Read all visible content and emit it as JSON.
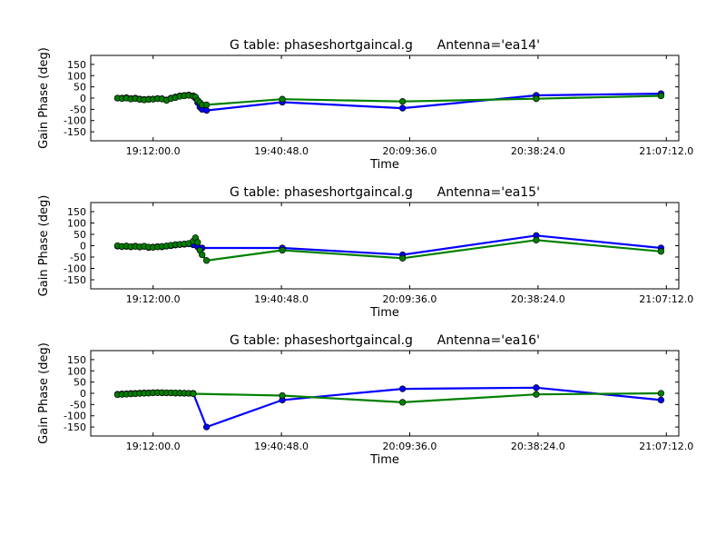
{
  "chart_data": [
    {
      "type": "line",
      "title": "G table: phaseshortgaincal.g      Antenna='ea14'",
      "xlabel": "Time",
      "ylabel": "Gain Phase (deg)",
      "xlim": [
        "18:58:00",
        "21:10:00"
      ],
      "ylim": [
        -190,
        190
      ],
      "xticks": [
        "19:12:00.0",
        "19:40:48.0",
        "20:09:36.0",
        "20:38:24.0",
        "21:07:12.0"
      ],
      "yticks": [
        "150",
        "100",
        "50",
        "0",
        "-50",
        "-100",
        "-150"
      ],
      "yticks_values": [
        150,
        100,
        50,
        0,
        -50,
        -100,
        -150
      ],
      "series": [
        {
          "color": "#0000ff",
          "x": [
            "19:04:00",
            "19:05:00",
            "19:06:00",
            "19:07:00",
            "19:08:00",
            "19:09:00",
            "19:10:00",
            "19:11:00",
            "19:12:00",
            "19:13:00",
            "19:14:00",
            "19:15:00",
            "19:16:00",
            "19:17:00",
            "19:18:00",
            "19:19:00",
            "19:20:00",
            "19:21:00",
            "19:21:30",
            "19:22:00",
            "19:22:30",
            "19:23:00",
            "19:24:00",
            "19:41:00",
            "20:08:00",
            "20:38:00",
            "21:06:00"
          ],
          "y": [
            0,
            0,
            2,
            -2,
            0,
            -4,
            -6,
            -5,
            -4,
            -2,
            -3,
            -8,
            0,
            5,
            10,
            12,
            14,
            10,
            0,
            -20,
            -40,
            -50,
            -55,
            -18,
            -45,
            12,
            20
          ]
        },
        {
          "color": "#008000",
          "x": [
            "19:04:00",
            "19:05:00",
            "19:06:00",
            "19:07:00",
            "19:08:00",
            "19:09:00",
            "19:10:00",
            "19:11:00",
            "19:12:00",
            "19:13:00",
            "19:14:00",
            "19:15:00",
            "19:16:00",
            "19:17:00",
            "19:18:00",
            "19:19:00",
            "19:20:00",
            "19:21:00",
            "19:21:30",
            "19:22:00",
            "19:22:30",
            "19:23:00",
            "19:24:00",
            "19:41:00",
            "20:08:00",
            "20:38:00",
            "21:06:00"
          ],
          "y": [
            0,
            -2,
            0,
            -4,
            -2,
            -6,
            -8,
            -6,
            -5,
            -3,
            -4,
            -10,
            -2,
            2,
            8,
            10,
            12,
            8,
            5,
            -10,
            -20,
            -30,
            -30,
            -5,
            -15,
            -3,
            10
          ]
        }
      ]
    },
    {
      "type": "line",
      "title": "G table: phaseshortgaincal.g      Antenna='ea15'",
      "xlabel": "Time",
      "ylabel": "Gain Phase (deg)",
      "xlim": [
        "18:58:00",
        "21:10:00"
      ],
      "ylim": [
        -190,
        190
      ],
      "xticks": [
        "19:12:00.0",
        "19:40:48.0",
        "20:09:36.0",
        "20:38:24.0",
        "21:07:12.0"
      ],
      "yticks": [
        "150",
        "100",
        "50",
        "0",
        "-50",
        "-100",
        "-150"
      ],
      "yticks_values": [
        150,
        100,
        50,
        0,
        -50,
        -100,
        -150
      ],
      "series": [
        {
          "color": "#0000ff",
          "x": [
            "19:04:00",
            "19:05:00",
            "19:06:00",
            "19:07:00",
            "19:08:00",
            "19:09:00",
            "19:10:00",
            "19:11:00",
            "19:12:00",
            "19:13:00",
            "19:14:00",
            "19:15:00",
            "19:16:00",
            "19:17:00",
            "19:18:00",
            "19:19:00",
            "19:20:00",
            "19:21:00",
            "19:22:00",
            "19:23:00",
            "19:41:00",
            "20:08:00",
            "20:38:00",
            "21:06:00"
          ],
          "y": [
            -2,
            -4,
            -3,
            -5,
            -2,
            -6,
            -3,
            -8,
            -6,
            -4,
            -5,
            -2,
            0,
            3,
            5,
            6,
            8,
            4,
            -5,
            -10,
            -10,
            -40,
            45,
            -10
          ]
        },
        {
          "color": "#008000",
          "x": [
            "19:04:00",
            "19:05:00",
            "19:06:00",
            "19:07:00",
            "19:08:00",
            "19:09:00",
            "19:10:00",
            "19:11:00",
            "19:12:00",
            "19:13:00",
            "19:14:00",
            "19:15:00",
            "19:16:00",
            "19:17:00",
            "19:18:00",
            "19:19:00",
            "19:20:00",
            "19:21:00",
            "19:21:30",
            "19:22:00",
            "19:22:30",
            "19:23:00",
            "19:24:00",
            "19:41:00",
            "20:08:00",
            "20:38:00",
            "21:06:00"
          ],
          "y": [
            0,
            -3,
            -1,
            -4,
            -3,
            -5,
            -2,
            -6,
            -7,
            -5,
            -3,
            -1,
            2,
            5,
            6,
            8,
            10,
            20,
            35,
            15,
            -20,
            -40,
            -65,
            -20,
            -55,
            25,
            -25
          ]
        }
      ]
    },
    {
      "type": "line",
      "title": "G table: phaseshortgaincal.g      Antenna='ea16'",
      "xlabel": "Time",
      "ylabel": "Gain Phase (deg)",
      "xlim": [
        "18:58:00",
        "21:10:00"
      ],
      "ylim": [
        -190,
        190
      ],
      "xticks": [
        "19:12:00.0",
        "19:40:48.0",
        "20:09:36.0",
        "20:38:24.0",
        "21:07:12.0"
      ],
      "yticks": [
        "150",
        "100",
        "50",
        "0",
        "-50",
        "-100",
        "-150"
      ],
      "yticks_values": [
        150,
        100,
        50,
        0,
        -50,
        -100,
        -150
      ],
      "series": [
        {
          "color": "#0000ff",
          "x": [
            "19:04:00",
            "19:05:00",
            "19:06:00",
            "19:07:00",
            "19:08:00",
            "19:09:00",
            "19:10:00",
            "19:11:00",
            "19:12:00",
            "19:13:00",
            "19:14:00",
            "19:15:00",
            "19:16:00",
            "19:17:00",
            "19:18:00",
            "19:19:00",
            "19:20:00",
            "19:21:00",
            "19:24:00",
            "19:41:00",
            "20:08:00",
            "20:38:00",
            "21:06:00"
          ],
          "y": [
            -4,
            -3,
            -2,
            -1,
            0,
            1,
            2,
            2,
            3,
            3,
            2,
            2,
            2,
            1,
            1,
            0,
            0,
            0,
            -150,
            -30,
            20,
            25,
            -30
          ]
        },
        {
          "color": "#008000",
          "x": [
            "19:04:00",
            "19:05:00",
            "19:06:00",
            "19:07:00",
            "19:08:00",
            "19:09:00",
            "19:10:00",
            "19:11:00",
            "19:12:00",
            "19:13:00",
            "19:14:00",
            "19:15:00",
            "19:16:00",
            "19:17:00",
            "19:18:00",
            "19:19:00",
            "19:20:00",
            "19:21:00",
            "19:41:00",
            "20:08:00",
            "20:38:00",
            "21:06:00"
          ],
          "y": [
            -6,
            -5,
            -4,
            -3,
            -2,
            -1,
            0,
            1,
            2,
            3,
            3,
            2,
            2,
            2,
            1,
            1,
            0,
            -2,
            -10,
            -40,
            -5,
            0
          ]
        }
      ]
    }
  ]
}
